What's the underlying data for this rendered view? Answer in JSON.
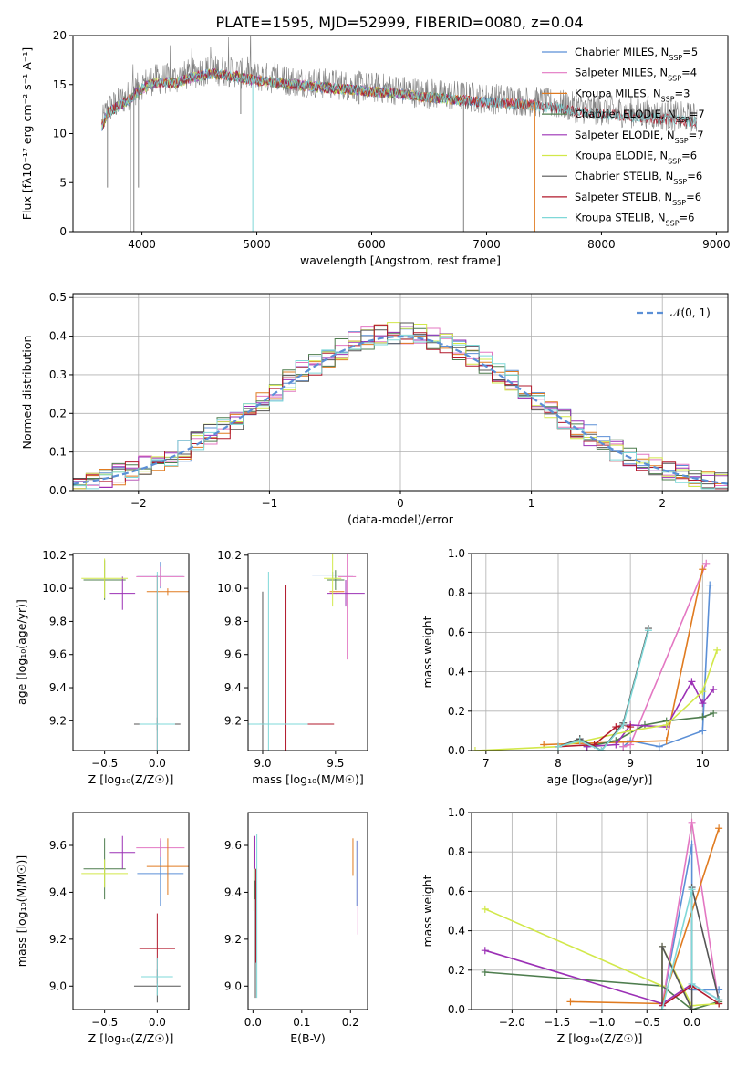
{
  "figure_title": "PLATE=1595, MJD=52999, FIBERID=0080, z=0.04",
  "colors": {
    "chabrier_miles": "#5b8fd6",
    "salpeter_miles": "#e377c2",
    "kroupa_miles": "#e07b20",
    "chabrier_elodie": "#4e7d4e",
    "salpeter_elodie": "#9b30b5",
    "kroupa_elodie": "#d2e84a",
    "chabrier_stelib": "#555555",
    "salpeter_stelib": "#b2182b",
    "kroupa_stelib": "#7fd8d8",
    "normal_curve": "#5b8fd6",
    "grid": "#b0b0b0"
  },
  "chart_data": [
    {
      "id": "spectrum",
      "type": "line",
      "xlabel": "wavelength [Angstrom, rest frame]",
      "ylabel": "Flux [fλ10⁻¹⁷ erg cm⁻² s⁻¹ A⁻¹]",
      "xlim": [
        3400,
        9100
      ],
      "ylim": [
        0,
        20
      ],
      "xticks": [
        4000,
        5000,
        6000,
        7000,
        8000,
        9000
      ],
      "yticks": [
        0,
        5,
        10,
        15,
        20
      ],
      "grid": false,
      "legend_position": "right",
      "legend": [
        {
          "key": "chabrier_miles",
          "label": "Chabrier MILES, N_SSP=5"
        },
        {
          "key": "salpeter_miles",
          "label": "Salpeter MILES, N_SSP=4"
        },
        {
          "key": "kroupa_miles",
          "label": "Kroupa MILES, N_SSP=3"
        },
        {
          "key": "chabrier_elodie",
          "label": "Chabrier ELODIE, N_SSP=7"
        },
        {
          "key": "salpeter_elodie",
          "label": "Salpeter ELODIE, N_SSP=7"
        },
        {
          "key": "kroupa_elodie",
          "label": "Kroupa ELODIE, N_SSP=6"
        },
        {
          "key": "chabrier_stelib",
          "label": "Chabrier STELIB, N_SSP=6"
        },
        {
          "key": "salpeter_stelib",
          "label": "Salpeter STELIB, N_SSP=6"
        },
        {
          "key": "kroupa_stelib",
          "label": "Kroupa STELIB, N_SSP=6"
        }
      ],
      "observed_envelope": [
        [
          3650,
          11
        ],
        [
          3700,
          12.5
        ],
        [
          3800,
          13.2
        ],
        [
          3900,
          14
        ],
        [
          4000,
          15
        ],
        [
          4100,
          15.5
        ],
        [
          4200,
          15.6
        ],
        [
          4300,
          15.6
        ],
        [
          4400,
          16
        ],
        [
          4500,
          16.3
        ],
        [
          4600,
          16.5
        ],
        [
          4700,
          16.4
        ],
        [
          4800,
          16.3
        ],
        [
          4900,
          16
        ],
        [
          5000,
          15.8
        ],
        [
          5100,
          15.7
        ],
        [
          5200,
          15.5
        ],
        [
          5300,
          15.4
        ],
        [
          5400,
          15.3
        ],
        [
          5500,
          15.2
        ],
        [
          5600,
          15.1
        ],
        [
          5800,
          14.9
        ],
        [
          6000,
          14.7
        ],
        [
          6200,
          14.5
        ],
        [
          6400,
          14.2
        ],
        [
          6600,
          14
        ],
        [
          6800,
          13.8
        ],
        [
          7000,
          13.6
        ],
        [
          7200,
          13.5
        ],
        [
          7400,
          13.3
        ],
        [
          7600,
          13
        ],
        [
          7800,
          12.6
        ],
        [
          8000,
          12.4
        ],
        [
          8200,
          12.2
        ],
        [
          8400,
          12
        ],
        [
          8600,
          11.8
        ],
        [
          8800,
          11.6
        ]
      ],
      "model_range": {
        "miles": [
          3650,
          7420
        ],
        "elodie": [
          3650,
          6800
        ],
        "stelib": [
          3650,
          8830
        ]
      },
      "dips": [
        [
          3700,
          4.5
        ],
        [
          3900,
          0
        ],
        [
          3930,
          0
        ],
        [
          3970,
          4.5
        ],
        [
          4860,
          12
        ],
        [
          4965,
          0
        ],
        [
          5890,
          13
        ],
        [
          6560,
          13
        ],
        [
          6800,
          0
        ],
        [
          7420,
          0
        ]
      ]
    },
    {
      "id": "residuals",
      "type": "histogram",
      "xlabel": "(data-model)/error",
      "ylabel": "Normed distribution",
      "xlim": [
        -2.5,
        2.5
      ],
      "ylim": [
        0,
        0.51
      ],
      "xticks": [
        -2,
        -1,
        0,
        1,
        2
      ],
      "yticks": [
        0.0,
        0.1,
        0.2,
        0.3,
        0.4,
        0.5
      ],
      "grid": true,
      "legend_position": "top-right",
      "legend": [
        {
          "key": "normal_curve",
          "label": "𝒩(0, 1)"
        }
      ],
      "bin_width": 0.1,
      "bin_start": -2.5
    },
    {
      "id": "age_vs_Z",
      "type": "errorbar",
      "xlabel": "Z [log₁₀(Z/Z☉)]",
      "ylabel": "age  [log₁₀(age/yr)]",
      "xlim": [
        -0.8,
        0.3
      ],
      "ylim": [
        9.02,
        10.21
      ],
      "xticks": [
        -0.5,
        0.0
      ],
      "yticks": [
        9.2,
        9.4,
        9.6,
        9.8,
        10.0,
        10.2
      ],
      "points": [
        {
          "key": "chabrier_miles",
          "x": 0.03,
          "y": 10.08,
          "xerr": 0.22,
          "yerr": 0.08
        },
        {
          "key": "salpeter_miles",
          "x": 0.03,
          "y": 10.07,
          "xerr": 0.23,
          "yerr": 0.06
        },
        {
          "key": "kroupa_miles",
          "x": 0.1,
          "y": 9.98,
          "xerr": 0.2,
          "yerr": 0.02
        },
        {
          "key": "chabrier_elodie",
          "x": -0.5,
          "y": 10.05,
          "xerr": 0.2,
          "yerr": 0.12
        },
        {
          "key": "salpeter_elodie",
          "x": -0.33,
          "y": 9.97,
          "xerr": 0.12,
          "yerr": 0.1
        },
        {
          "key": "kroupa_elodie",
          "x": -0.5,
          "y": 10.06,
          "xerr": 0.22,
          "yerr": 0.12
        },
        {
          "key": "chabrier_stelib",
          "x": 0.0,
          "y": 9.18,
          "xerr": 0.22,
          "yerr": 0.04
        },
        {
          "key": "salpeter_stelib",
          "x": 0.0,
          "y": 9.18,
          "xerr": 0.02,
          "yerr": 0.9
        },
        {
          "key": "kroupa_stelib",
          "x": 0.0,
          "y": 9.18,
          "xerr": 0.17,
          "yerr": 0.92
        }
      ]
    },
    {
      "id": "age_vs_mass",
      "type": "errorbar",
      "xlabel": "mass [log₁₀(M/M☉)]",
      "ylabel": "",
      "xlim": [
        8.9,
        9.72
      ],
      "ylim": [
        9.02,
        10.21
      ],
      "xticks": [
        9.0,
        9.5
      ],
      "yticks": [
        9.2,
        9.4,
        9.6,
        9.8,
        10.0,
        10.2
      ],
      "points": [
        {
          "key": "chabrier_miles",
          "x": 9.48,
          "y": 10.08,
          "xerr": 0.14,
          "yerr": 0.02
        },
        {
          "key": "salpeter_miles",
          "x": 9.58,
          "y": 10.07,
          "xerr": 0.06,
          "yerr": 0.5
        },
        {
          "key": "kroupa_miles",
          "x": 9.51,
          "y": 9.98,
          "xerr": 0.05,
          "yerr": 0.02
        },
        {
          "key": "chabrier_elodie",
          "x": 9.5,
          "y": 10.05,
          "xerr": 0.06,
          "yerr": 0.06
        },
        {
          "key": "salpeter_elodie",
          "x": 9.57,
          "y": 9.97,
          "xerr": 0.13,
          "yerr": 0.08
        },
        {
          "key": "kroupa_elodie",
          "x": 9.48,
          "y": 10.06,
          "xerr": 0.06,
          "yerr": 0.17
        },
        {
          "key": "chabrier_stelib",
          "x": 9.0,
          "y": 9.18,
          "xerr": 0.02,
          "yerr": 0.8
        },
        {
          "key": "salpeter_stelib",
          "x": 9.16,
          "y": 9.18,
          "xerr": 0.33,
          "yerr": 0.84
        },
        {
          "key": "kroupa_stelib",
          "x": 9.04,
          "y": 9.18,
          "xerr": 0.27,
          "yerr": 0.92
        }
      ]
    },
    {
      "id": "weight_vs_age",
      "type": "line",
      "xlabel": "age  [log₁₀(age/yr)]",
      "ylabel": "mass weight",
      "xlim": [
        6.8,
        10.35
      ],
      "ylim": [
        0,
        1
      ],
      "xticks": [
        7,
        8,
        9,
        10
      ],
      "yticks": [
        0.0,
        0.2,
        0.4,
        0.6,
        0.8,
        1.0
      ],
      "grid": true,
      "series": [
        {
          "key": "chabrier_miles",
          "x": [
            8.9,
            9.0,
            9.4,
            10.0,
            10.1
          ],
          "y": [
            0.02,
            0.05,
            0.02,
            0.1,
            0.84
          ]
        },
        {
          "key": "salpeter_miles",
          "x": [
            8.9,
            9.0,
            10.05
          ],
          "y": [
            0.02,
            0.03,
            0.95
          ]
        },
        {
          "key": "kroupa_miles",
          "x": [
            7.8,
            9.5,
            10.0
          ],
          "y": [
            0.03,
            0.05,
            0.92
          ]
        },
        {
          "key": "chabrier_elodie",
          "x": [
            8.4,
            8.8,
            9.2,
            9.5,
            10.0,
            10.15
          ],
          "y": [
            0.02,
            0.05,
            0.13,
            0.15,
            0.17,
            0.19
          ]
        },
        {
          "key": "salpeter_elodie",
          "x": [
            8.4,
            8.8,
            9.0,
            9.5,
            9.85,
            10.0,
            10.15
          ],
          "y": [
            0.02,
            0.03,
            0.13,
            0.12,
            0.35,
            0.24,
            0.31
          ]
        },
        {
          "key": "kroupa_elodie",
          "x": [
            6.85,
            8.0,
            9.0,
            9.5,
            10.0,
            10.2
          ],
          "y": [
            0.0,
            0.02,
            0.1,
            0.13,
            0.3,
            0.51
          ]
        },
        {
          "key": "chabrier_stelib",
          "x": [
            8.0,
            8.3,
            8.6,
            8.9,
            9.25
          ],
          "y": [
            0.02,
            0.06,
            0.0,
            0.14,
            0.62
          ]
        },
        {
          "key": "salpeter_stelib",
          "x": [
            8.0,
            8.5,
            8.8,
            8.9,
            9.0
          ],
          "y": [
            0.02,
            0.03,
            0.12,
            0.13,
            0.12
          ]
        },
        {
          "key": "kroupa_stelib",
          "x": [
            8.0,
            8.3,
            8.6,
            8.9,
            9.25
          ],
          "y": [
            0.02,
            0.05,
            0.0,
            0.13,
            0.61
          ]
        }
      ]
    },
    {
      "id": "mass_vs_Z",
      "type": "errorbar",
      "xlabel": "Z [log₁₀(Z/Z☉)]",
      "ylabel": "mass [log₁₀(M/M☉)]",
      "xlim": [
        -0.8,
        0.3
      ],
      "ylim": [
        8.9,
        9.74
      ],
      "xticks": [
        -0.5,
        0.0
      ],
      "yticks": [
        9.0,
        9.2,
        9.4,
        9.6
      ],
      "points": [
        {
          "key": "chabrier_miles",
          "x": 0.03,
          "y": 9.48,
          "xerr": 0.22,
          "yerr": 0.14
        },
        {
          "key": "salpeter_miles",
          "x": 0.03,
          "y": 9.59,
          "xerr": 0.23,
          "yerr": 0.04
        },
        {
          "key": "kroupa_miles",
          "x": 0.1,
          "y": 9.51,
          "xerr": 0.2,
          "yerr": 0.12
        },
        {
          "key": "chabrier_elodie",
          "x": -0.5,
          "y": 9.5,
          "xerr": 0.2,
          "yerr": 0.13
        },
        {
          "key": "salpeter_elodie",
          "x": -0.33,
          "y": 9.57,
          "xerr": 0.12,
          "yerr": 0.07
        },
        {
          "key": "kroupa_elodie",
          "x": -0.5,
          "y": 9.48,
          "xerr": 0.22,
          "yerr": 0.06
        },
        {
          "key": "chabrier_stelib",
          "x": 0.0,
          "y": 9.0,
          "xerr": 0.22,
          "yerr": 0.07
        },
        {
          "key": "salpeter_stelib",
          "x": 0.0,
          "y": 9.16,
          "xerr": 0.17,
          "yerr": 0.15
        },
        {
          "key": "kroupa_stelib",
          "x": 0.0,
          "y": 9.04,
          "xerr": 0.15,
          "yerr": 0.08
        }
      ]
    },
    {
      "id": "mass_vs_ebv",
      "type": "errorbar",
      "xlabel": "E(B-V)",
      "ylabel": "",
      "xlim": [
        -0.01,
        0.235
      ],
      "ylim": [
        8.9,
        9.74
      ],
      "xticks": [
        0.0,
        0.1,
        0.2
      ],
      "yticks": [
        9.0,
        9.2,
        9.4,
        9.6
      ],
      "points": [
        {
          "key": "chabrier_miles",
          "x": 0.213,
          "y": 9.48,
          "xerr": 0.0,
          "yerr": 0.14
        },
        {
          "key": "salpeter_miles",
          "x": 0.215,
          "y": 9.42,
          "xerr": 0.0,
          "yerr": 0.2
        },
        {
          "key": "kroupa_miles",
          "x": 0.205,
          "y": 9.55,
          "xerr": 0.0,
          "yerr": 0.08
        },
        {
          "key": "chabrier_elodie",
          "x": 0.003,
          "y": 9.5,
          "xerr": 0.0,
          "yerr": 0.13
        },
        {
          "key": "salpeter_elodie",
          "x": 0.004,
          "y": 9.57,
          "xerr": 0.0,
          "yerr": 0.07
        },
        {
          "key": "kroupa_elodie",
          "x": 0.002,
          "y": 9.48,
          "xerr": 0.0,
          "yerr": 0.16
        },
        {
          "key": "chabrier_stelib",
          "x": 0.005,
          "y": 9.2,
          "xerr": 0.0,
          "yerr": 0.25
        },
        {
          "key": "salpeter_stelib",
          "x": 0.006,
          "y": 9.3,
          "xerr": 0.0,
          "yerr": 0.2
        },
        {
          "key": "kroupa_stelib",
          "x": 0.008,
          "y": 9.3,
          "xerr": 0.0,
          "yerr": 0.35
        }
      ]
    },
    {
      "id": "weight_vs_Z",
      "type": "line",
      "xlabel": "Z [log₁₀(Z/Z☉)]",
      "ylabel": "mass weight",
      "xlim": [
        -2.45,
        0.4
      ],
      "ylim": [
        0,
        1
      ],
      "xticks": [
        -2.0,
        -1.5,
        -1.0,
        -0.5,
        0.0
      ],
      "yticks": [
        0.0,
        0.2,
        0.4,
        0.6,
        0.8,
        1.0
      ],
      "grid": true,
      "series": [
        {
          "key": "chabrier_miles",
          "x": [
            -0.33,
            0.0,
            0.0,
            0.3
          ],
          "y": [
            0.02,
            0.84,
            0.1,
            0.1
          ]
        },
        {
          "key": "salpeter_miles",
          "x": [
            -0.33,
            0.0,
            0.3
          ],
          "y": [
            0.02,
            0.95,
            0.03
          ]
        },
        {
          "key": "kroupa_miles",
          "x": [
            -1.35,
            -0.33,
            0.3
          ],
          "y": [
            0.04,
            0.03,
            0.92
          ]
        },
        {
          "key": "chabrier_elodie",
          "x": [
            -2.3,
            -0.33,
            0.0,
            0.3
          ],
          "y": [
            0.19,
            0.12,
            0.0,
            0.04
          ]
        },
        {
          "key": "salpeter_elodie",
          "x": [
            -2.3,
            -0.33,
            0.0,
            0.3
          ],
          "y": [
            0.3,
            0.03,
            0.13,
            0.05
          ]
        },
        {
          "key": "kroupa_elodie",
          "x": [
            -2.3,
            -0.33,
            -0.33,
            0.0,
            0.3
          ],
          "y": [
            0.51,
            0.12,
            0.32,
            0.02,
            0.03
          ]
        },
        {
          "key": "chabrier_stelib",
          "x": [
            -0.33,
            -0.33,
            0.0,
            0.0,
            0.3
          ],
          "y": [
            0.0,
            0.32,
            0.0,
            0.62,
            0.05
          ]
        },
        {
          "key": "salpeter_stelib",
          "x": [
            -0.33,
            0.0,
            0.3
          ],
          "y": [
            0.02,
            0.12,
            0.03
          ]
        },
        {
          "key": "kroupa_stelib",
          "x": [
            -0.33,
            0.0,
            0.0,
            0.3
          ],
          "y": [
            0.0,
            0.61,
            0.13,
            0.05
          ]
        }
      ]
    }
  ]
}
